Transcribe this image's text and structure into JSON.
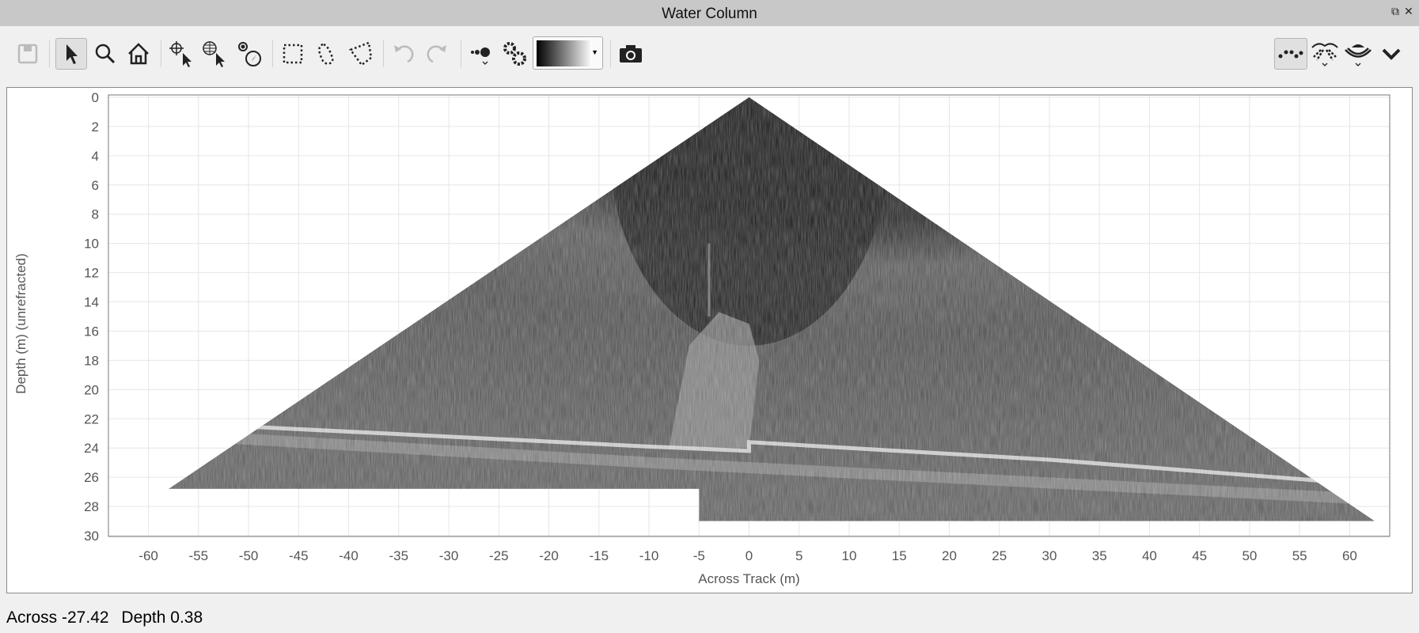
{
  "window": {
    "title": "Water Column",
    "restore_icon": "restore-icon",
    "close_icon": "close-icon"
  },
  "toolbar": {
    "left": [
      {
        "name": "save",
        "icon": "save-icon",
        "enabled": false
      },
      {
        "name": "select",
        "icon": "pointer-icon",
        "active": true
      },
      {
        "name": "zoom",
        "icon": "magnifier-icon"
      },
      {
        "name": "home",
        "icon": "home-icon"
      },
      {
        "name": "pick-point",
        "icon": "crosshair-pointer-icon"
      },
      {
        "name": "pick-geo",
        "icon": "globe-pointer-icon"
      },
      {
        "name": "navigate",
        "icon": "compass-icon"
      },
      {
        "name": "rect-select",
        "icon": "rectangle-select-icon"
      },
      {
        "name": "lasso-select",
        "icon": "lasso-select-icon"
      },
      {
        "name": "polygon-select",
        "icon": "polygon-select-icon"
      },
      {
        "name": "undo",
        "icon": "undo-icon",
        "enabled": false
      },
      {
        "name": "redo",
        "icon": "redo-icon",
        "enabled": false
      },
      {
        "name": "point-size",
        "icon": "dots-icon"
      },
      {
        "name": "settings",
        "icon": "gears-icon"
      }
    ],
    "colormap": {
      "from": "#000000",
      "to": "#ffffff"
    },
    "snapshot_icon": "camera-icon",
    "right": [
      {
        "name": "soundings",
        "icon": "soundings-icon",
        "active": true
      },
      {
        "name": "beams",
        "icon": "beam-fan-icon"
      },
      {
        "name": "sonar",
        "icon": "sonar-icon"
      },
      {
        "name": "more",
        "icon": "chevron-down-icon"
      }
    ]
  },
  "chart_data": {
    "type": "heatmap",
    "xlabel": "Across Track (m)",
    "ylabel": "Depth (m) (unrefracted)",
    "xlim": [
      -64,
      64
    ],
    "ylim": [
      30,
      0
    ],
    "xticks": [
      "-60",
      "-55",
      "-50",
      "-45",
      "-40",
      "-35",
      "-30",
      "-25",
      "-20",
      "-15",
      "-10",
      "-5",
      "0",
      "5",
      "10",
      "15",
      "20",
      "25",
      "30",
      "35",
      "40",
      "45",
      "50",
      "55",
      "60"
    ],
    "yticks": [
      "0",
      "2",
      "4",
      "6",
      "8",
      "10",
      "12",
      "14",
      "16",
      "18",
      "20",
      "22",
      "24",
      "26",
      "28",
      "30"
    ],
    "grid": true,
    "colormap": "grayscale",
    "swath": {
      "apex": [
        0,
        0
      ],
      "left_edge": [
        -58,
        26.8
      ],
      "right_edge": [
        62.5,
        29
      ],
      "seabed_depth": 24
    }
  },
  "status": {
    "across": "Across -27.42",
    "depth": "Depth 0.38"
  }
}
